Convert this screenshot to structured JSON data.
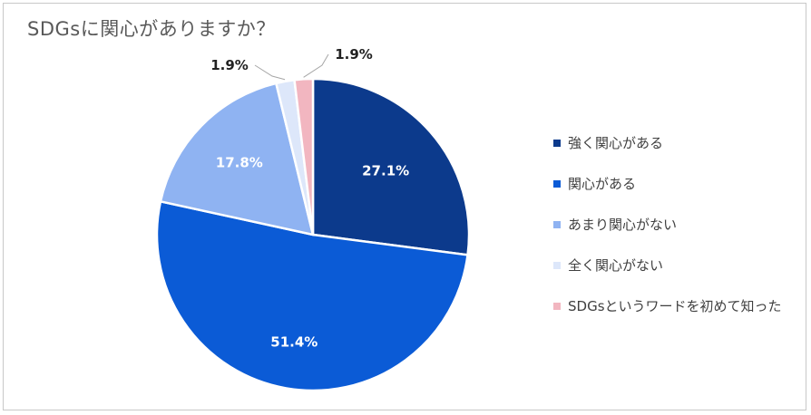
{
  "chart_data": {
    "type": "pie",
    "title": "SDGsに関心がありますか？",
    "series": [
      {
        "name": "強く関心がある",
        "value": 27.1,
        "label": "27.1%",
        "color": "#0c3a8c"
      },
      {
        "name": "関心がある",
        "value": 51.4,
        "label": "51.4%",
        "color": "#0b5bd6"
      },
      {
        "name": "あまり関心がない",
        "value": 17.8,
        "label": "17.8%",
        "color": "#8fb3f2"
      },
      {
        "name": "全く関心がない",
        "value": 1.9,
        "label": "1.9%",
        "color": "#dde7fa"
      },
      {
        "name": "SDGsというワードを初めて知った",
        "value": 1.9,
        "label": "1.9%",
        "color": "#f2b6c0"
      }
    ],
    "legend_position": "right",
    "start_angle": "12 o'clock, clockwise"
  }
}
